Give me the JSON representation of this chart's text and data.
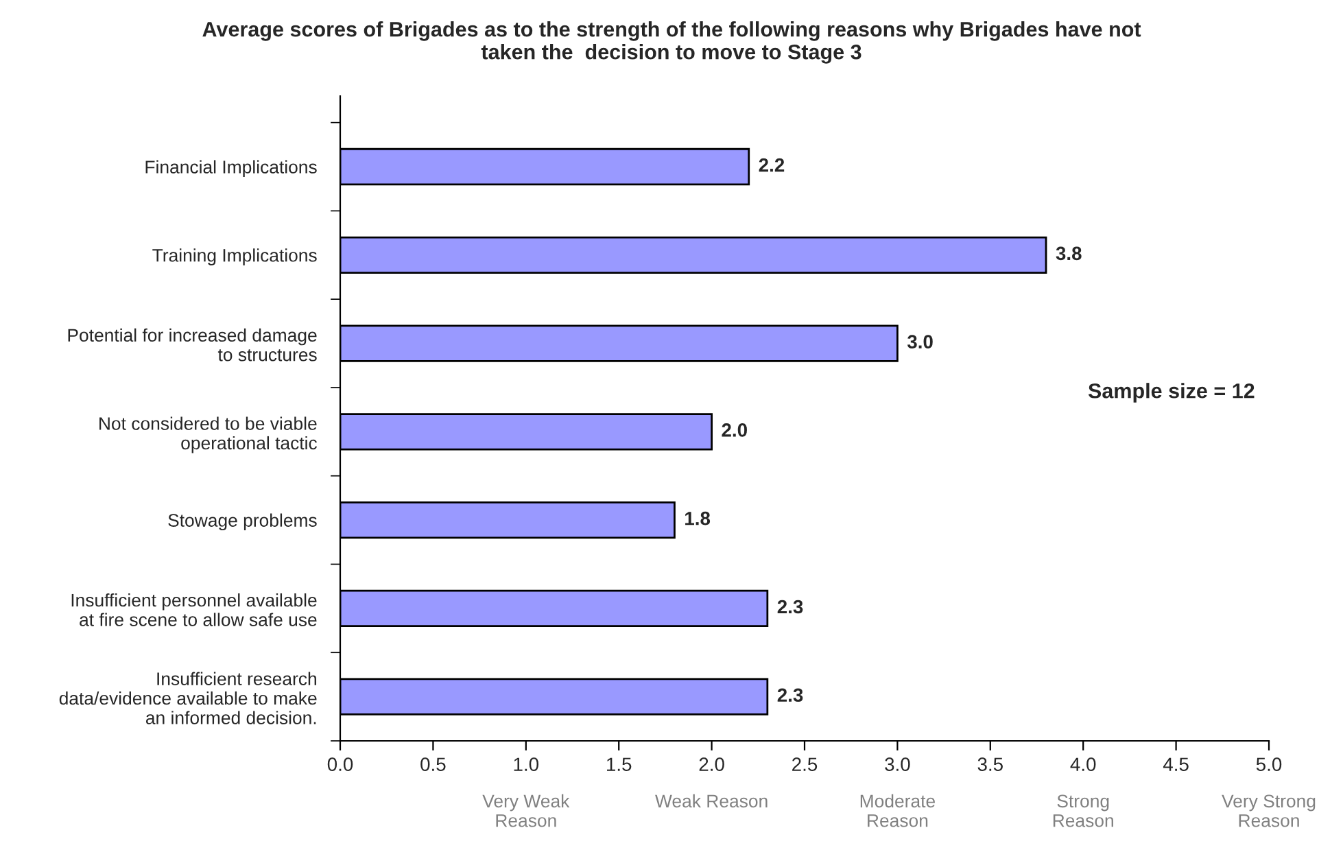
{
  "chart_data": {
    "type": "bar",
    "orientation": "horizontal",
    "title": "Average scores of Brigades as to the strength of the following reasons why Brigades have not\ntaken the  decision to move to Stage 3",
    "categories": [
      "Financial Implications",
      "Training Implications",
      "Potential for increased damage\nto structures",
      "Not considered to be viable\noperational tactic",
      "Stowage problems",
      "Insufficient personnel available\nat fire scene to allow safe use",
      "Insufficient research\ndata/evidence available to make\nan informed decision."
    ],
    "values": [
      2.2,
      3.8,
      3.0,
      2.0,
      1.8,
      2.3,
      2.3
    ],
    "value_labels": [
      "2.2",
      "3.8",
      "3.0",
      "2.0",
      "1.8",
      "2.3",
      "2.3"
    ],
    "color": "#9999ff",
    "grid": false,
    "legend": false,
    "xlim": [
      0,
      5
    ],
    "xticks": [
      {
        "value": 0,
        "label": "0.0"
      },
      {
        "value": 0.5,
        "label": "0.5"
      },
      {
        "value": 1,
        "label": "1.0"
      },
      {
        "value": 1.5,
        "label": "1.5"
      },
      {
        "value": 2,
        "label": "2.0"
      },
      {
        "value": 2.5,
        "label": "2.5"
      },
      {
        "value": 3,
        "label": "3.0"
      },
      {
        "value": 3.5,
        "label": "3.5"
      },
      {
        "value": 4,
        "label": "4.0"
      },
      {
        "value": 4.5,
        "label": "4.5"
      },
      {
        "value": 5,
        "label": "5.0"
      }
    ],
    "annotations": [
      "Sample size = 12",
      "Very Weak\nReason",
      "Weak Reason",
      "Moderate\nReason",
      "Strong\nReason",
      "Very Strong\nReason"
    ]
  }
}
